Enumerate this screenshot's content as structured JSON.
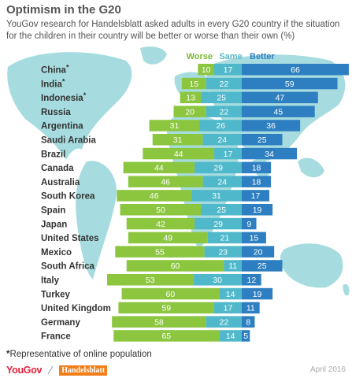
{
  "header": {
    "title": "Optimism in the G20",
    "subtitle": "YouGov research for Handelsblatt asked adults in every G20 country if the situation for the children in their country will be better or worse than their own (%)"
  },
  "footer": {
    "footnote_star": "*",
    "footnote": "Representative of online population",
    "brand_yougov": "YouGov",
    "brand_handelsblatt": "Handelsblatt",
    "date": "April 2016"
  },
  "colors": {
    "worse": "#8cc63f",
    "same": "#4fb8ca",
    "better": "#2e7fc1",
    "map": "#a6dcdf",
    "title_text": "#555555",
    "worse_label": "#78b832",
    "same_label": "#5bb8c9",
    "better_label": "#2e7fc1"
  },
  "chart_data": {
    "type": "bar",
    "orientation": "horizontal",
    "stacked": true,
    "background_image": "world map",
    "legend_placement": "top",
    "categories": [
      "China",
      "India",
      "Indonesia",
      "Russia",
      "Argentina",
      "Saudi Arabia",
      "Brazil",
      "Canada",
      "Australia",
      "South Korea",
      "Spain",
      "Japan",
      "United States",
      "Mexico",
      "South Africa",
      "Italy",
      "Turkey",
      "United Kingdom",
      "Germany",
      "France"
    ],
    "starred": [
      "China",
      "India",
      "Indonesia"
    ],
    "series": [
      {
        "name": "Worse",
        "values": [
          10,
          15,
          13,
          20,
          31,
          31,
          44,
          44,
          46,
          46,
          50,
          42,
          49,
          55,
          60,
          53,
          60,
          59,
          58,
          65
        ]
      },
      {
        "name": "Same",
        "values": [
          17,
          22,
          25,
          22,
          26,
          24,
          17,
          29,
          24,
          31,
          25,
          29,
          21,
          23,
          11,
          30,
          14,
          17,
          22,
          14
        ]
      },
      {
        "name": "Better",
        "values": [
          66,
          59,
          47,
          45,
          36,
          25,
          34,
          18,
          18,
          17,
          19,
          9,
          15,
          20,
          25,
          12,
          19,
          11,
          8,
          5
        ]
      }
    ]
  }
}
